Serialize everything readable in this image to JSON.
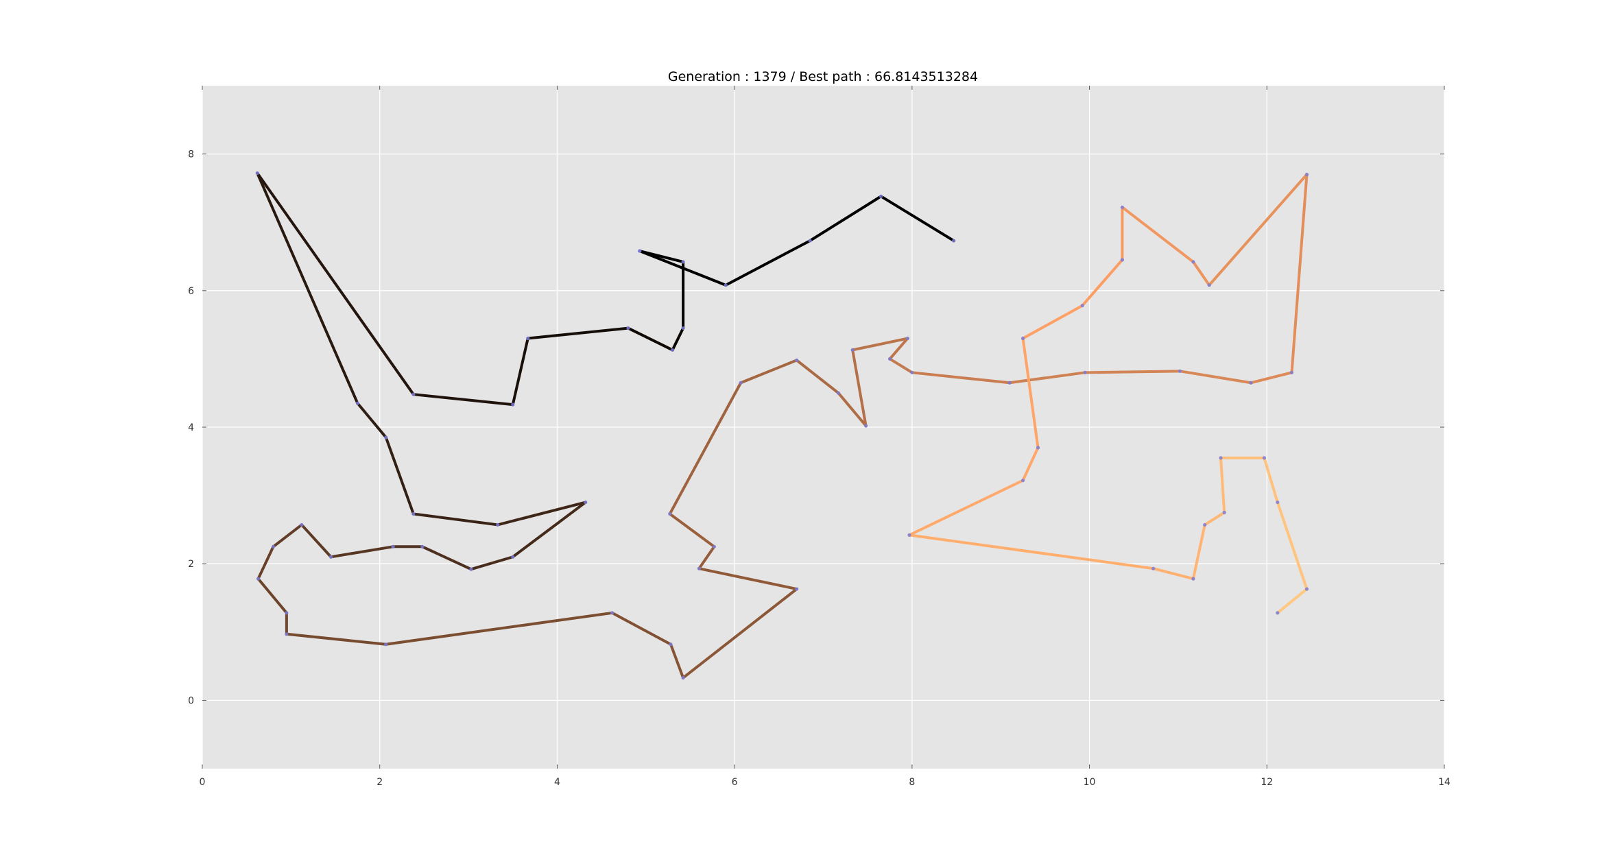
{
  "chart_data": {
    "type": "line",
    "title": "Generation : 1379 / Best path : 66.8143513284",
    "xlabel": "",
    "ylabel": "",
    "xlim": [
      0,
      14
    ],
    "ylim": [
      -1,
      9
    ],
    "x_ticks": [
      "0",
      "2",
      "4",
      "6",
      "8",
      "10",
      "12",
      "14"
    ],
    "y_ticks": [
      "0",
      "2",
      "4",
      "6",
      "8"
    ],
    "grid": true,
    "background": "#e5e5e5",
    "grid_color": "#ffffff",
    "point_color": "#7b7bd6",
    "colormap": "copper",
    "path": [
      [
        4.93,
        6.58
      ],
      [
        5.42,
        6.42
      ],
      [
        5.42,
        5.45
      ],
      [
        5.3,
        5.13
      ],
      [
        4.8,
        5.45
      ],
      [
        3.67,
        5.3
      ],
      [
        3.5,
        4.33
      ],
      [
        2.38,
        4.48
      ],
      [
        0.62,
        7.72
      ],
      [
        1.75,
        4.35
      ],
      [
        2.07,
        3.85
      ],
      [
        2.38,
        2.73
      ],
      [
        3.33,
        2.57
      ],
      [
        4.32,
        2.9
      ],
      [
        3.5,
        2.1
      ],
      [
        3.03,
        1.92
      ],
      [
        2.48,
        2.25
      ],
      [
        2.15,
        2.25
      ],
      [
        1.45,
        2.1
      ],
      [
        1.12,
        2.57
      ],
      [
        0.8,
        2.25
      ],
      [
        0.63,
        1.78
      ],
      [
        0.95,
        1.28
      ],
      [
        0.95,
        0.97
      ],
      [
        2.07,
        0.82
      ],
      [
        4.62,
        1.28
      ],
      [
        5.28,
        0.82
      ],
      [
        5.42,
        0.33
      ],
      [
        6.7,
        1.63
      ],
      [
        5.6,
        1.93
      ],
      [
        5.77,
        2.25
      ],
      [
        5.27,
        2.73
      ],
      [
        6.07,
        4.65
      ],
      [
        6.7,
        4.98
      ],
      [
        7.17,
        4.5
      ],
      [
        7.48,
        4.02
      ],
      [
        7.33,
        5.13
      ],
      [
        7.95,
        5.3
      ],
      [
        7.75,
        5.0
      ],
      [
        8.0,
        4.8
      ],
      [
        9.1,
        4.65
      ],
      [
        9.95,
        4.8
      ],
      [
        11.02,
        4.82
      ],
      [
        11.82,
        4.65
      ],
      [
        12.28,
        4.8
      ],
      [
        12.45,
        7.7
      ],
      [
        11.35,
        6.08
      ],
      [
        11.17,
        6.42
      ],
      [
        10.37,
        7.22
      ],
      [
        10.37,
        6.45
      ],
      [
        9.92,
        5.78
      ],
      [
        9.25,
        5.3
      ],
      [
        9.42,
        3.7
      ],
      [
        9.25,
        3.22
      ],
      [
        7.97,
        2.42
      ],
      [
        10.72,
        1.93
      ],
      [
        11.17,
        1.78
      ],
      [
        11.3,
        2.57
      ],
      [
        11.52,
        2.75
      ],
      [
        11.48,
        3.55
      ],
      [
        11.97,
        3.55
      ],
      [
        12.12,
        2.9
      ],
      [
        12.45,
        1.63
      ],
      [
        12.12,
        1.28
      ]
    ],
    "extra_segments": [
      [
        [
          4.93,
          6.58
        ],
        [
          5.9,
          6.08
        ],
        [
          6.85,
          6.73
        ],
        [
          7.65,
          7.38
        ],
        [
          8.47,
          6.73
        ]
      ]
    ]
  }
}
